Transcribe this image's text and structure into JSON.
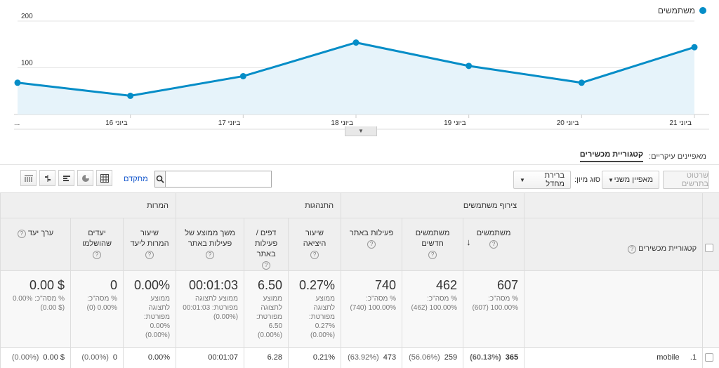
{
  "legend": {
    "label": "משתמשים",
    "color": "#058dc7"
  },
  "chart_data": {
    "type": "area",
    "x": [
      "...",
      "16 ביוני",
      "17 ביוני",
      "18 ביוני",
      "19 ביוני",
      "20 ביוני",
      "21 ביוני"
    ],
    "tick_labels": [
      "...",
      "16 ביוני",
      "17 ביוני",
      "18 ביוני",
      "19 ביוני",
      "20 ביוני",
      "21 ביוני"
    ],
    "y_ticks": [
      "100",
      "200"
    ],
    "ylim": [
      0,
      200
    ],
    "series": [
      {
        "name": "משתמשים",
        "values": [
          68,
          40,
          82,
          154,
          104,
          68,
          144
        ]
      }
    ],
    "color": "#058dc7",
    "grid": true
  },
  "dimensions": {
    "prefix": "מאפיינים עיקריים:",
    "active": "קטגוריית מכשירים"
  },
  "toolbar": {
    "plot_rows": "שרטוט בתרשים",
    "secondary_dim": "מאפיין משני",
    "sort_type_label": "סוג מיון:",
    "sort_default": "ברירת מחדל",
    "advanced": "מתקדם",
    "search_placeholder": ""
  },
  "table": {
    "groups": {
      "acquisition": "צירוף משתמשים",
      "behavior": "התנהגות",
      "conversions": "המרות"
    },
    "headers": {
      "dimension": "קטגוריית מכשירים",
      "users": "משתמשים",
      "new_users": "משתמשים חדשים",
      "sessions": "פעילות באתר",
      "bounce": "שיעור היציאה",
      "pages": "דפים / פעילות באתר",
      "duration": "משך ממוצע של פעילות באתר",
      "conv_rate": "שיעור המרות ליעד",
      "completions": "יעדים שהושלמו",
      "value": "ערך יעד"
    },
    "totals": {
      "users": {
        "value": "607",
        "sub": "% מסה\"כ: 100.00% (607)"
      },
      "new_users": {
        "value": "462",
        "sub": "% מסה\"כ: 100.00% (462)"
      },
      "sessions": {
        "value": "740",
        "sub": "% מסה\"כ: 100.00% (740)"
      },
      "bounce": {
        "value": "0.27%",
        "sub": "ממוצע לתצוגה מפורטת: 0.27% (0.00%)"
      },
      "pages": {
        "value": "6.50",
        "sub": "ממוצע לתצוגה מפורטת: 6.50 (0.00%)"
      },
      "duration": {
        "value": "00:01:03",
        "sub": "ממוצע לתצוגה מפורטת: 00:01:03 (0.00%)"
      },
      "conv_rate": {
        "value": "0.00%",
        "sub": "ממוצע לתצוגה מפורטת: 0.00% (0.00%)"
      },
      "completions": {
        "value": "0",
        "sub": "% מסה\"כ: 0.00% (0)"
      },
      "value": {
        "value": "$ 0.00",
        "sub": "% מסה\"כ: 0.00% ($ 0.00)"
      }
    },
    "rows": [
      {
        "index": "1.",
        "name": "mobile",
        "users": "365",
        "users_pct": "(60.13%)",
        "new_users": "259",
        "new_users_pct": "(56.06%)",
        "sessions": "473",
        "sessions_pct": "(63.92%)",
        "bounce": "0.21%",
        "pages": "6.28",
        "duration": "00:01:07",
        "conv_rate": "0.00%",
        "completions": "0",
        "completions_pct": "(0.00%)",
        "value": "$ 0.00",
        "value_pct": "(0.00%)"
      }
    ]
  }
}
